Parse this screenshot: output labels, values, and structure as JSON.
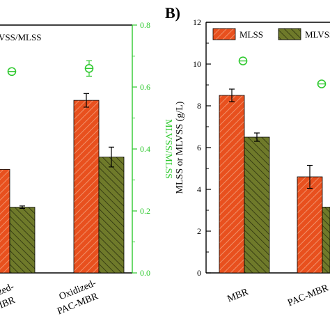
{
  "colors": {
    "mlss": "#E8501E",
    "mlvss": "#6F7A2A",
    "ratio": "#2FC92F",
    "axis": "#000000"
  },
  "chart_data": [
    {
      "panel": "left",
      "type": "bar",
      "panel_label": "",
      "categories": [
        "Oxidized-\nMBR",
        "Oxidized-\nPAC-MBR"
      ],
      "category_lines": [
        [
          "ized-",
          "MBR"
        ],
        [
          "Oxidized-",
          "PAC-MBR"
        ]
      ],
      "series": [
        {
          "name": "MLSS",
          "values": [
            null,
            null
          ],
          "visible_heights_ratio_axis": [
            0.334,
            0.557
          ],
          "errors_ratio_axis": [
            0.004,
            0.022
          ]
        },
        {
          "name": "MLVSS",
          "values": [
            null,
            null
          ],
          "visible_heights_ratio_axis": [
            0.212,
            0.374
          ],
          "errors_ratio_axis": [
            0.004,
            0.032
          ]
        }
      ],
      "ratio_series": {
        "name": "MLVSS/MLSS",
        "values": [
          0.65,
          0.66
        ],
        "errors": [
          0.0,
          0.025
        ]
      },
      "legend_text": "VSS/MLSS",
      "y2label": "MLVSS/MLSS",
      "y2lim": [
        0.0,
        0.8
      ],
      "y2ticks": [
        "0.0",
        "0.2",
        "0.4",
        "0.6",
        "0.8"
      ]
    },
    {
      "panel": "right",
      "type": "bar",
      "panel_label": "B)",
      "categories": [
        "MBR",
        "PAC-MBR"
      ],
      "series": [
        {
          "name": "MLSS",
          "values": [
            8.5,
            4.6
          ],
          "errors": [
            0.3,
            0.55
          ]
        },
        {
          "name": "MLVSS",
          "values": [
            6.5,
            3.15
          ],
          "errors": [
            0.2,
            0.0
          ]
        }
      ],
      "ratio_points_left_axis": [
        10.15,
        9.05
      ],
      "legend": [
        "MLSS",
        "MLVSS"
      ],
      "legend_placement": "top",
      "ylabel": "MLSS or MLVSS (g/L)",
      "ylim": [
        0,
        12
      ],
      "yticks": [
        "0",
        "2",
        "4",
        "6",
        "8",
        "10",
        "12"
      ]
    }
  ]
}
